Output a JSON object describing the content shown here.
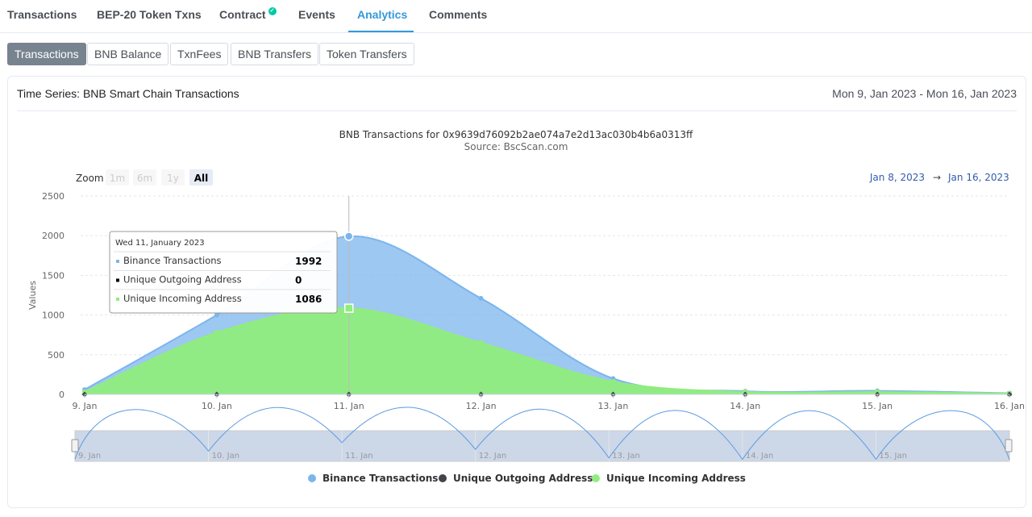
{
  "tabs": [
    {
      "label": "Transactions"
    },
    {
      "label": "BEP-20 Token Txns"
    },
    {
      "label": "Contract",
      "badge": "✓"
    },
    {
      "label": "Events"
    },
    {
      "label": "Analytics"
    },
    {
      "label": "Comments"
    }
  ],
  "subtabs": [
    {
      "label": "Transactions"
    },
    {
      "label": "BNB Balance"
    },
    {
      "label": "TxnFees"
    },
    {
      "label": "BNB Transfers"
    },
    {
      "label": "Token Transfers"
    }
  ],
  "card": {
    "title": "Time Series: BNB Smart Chain Transactions",
    "date_range": "Mon 9, Jan 2023 - Mon 16, Jan 2023"
  },
  "zoom": {
    "label": "Zoom",
    "buttons": [
      "1m",
      "6m",
      "1y",
      "All"
    ],
    "from": "Jan 8, 2023",
    "arrow": "→",
    "to": "Jan 16, 2023"
  },
  "tooltip": {
    "date": "Wed 11, January 2023",
    "rows": [
      {
        "name": "Binance Transactions",
        "value": "1992"
      },
      {
        "name": "Unique Outgoing Address",
        "value": "0"
      },
      {
        "name": "Unique Incoming Address",
        "value": "1086"
      }
    ]
  },
  "colors": {
    "accent": "#3498db",
    "series_blue": "#7cb5ec",
    "series_dark": "#434348",
    "series_green": "#90ed7d"
  },
  "chart_data": {
    "type": "area",
    "title": "BNB Transactions for 0x9639d76092b2ae074a7e2d13ac030b4b6a0313ff",
    "subtitle": "Source: BscScan.com",
    "ylabel": "Values",
    "ylim": [
      0,
      2500
    ],
    "yticks": [
      "0",
      "500",
      "1000",
      "1500",
      "2000",
      "2500"
    ],
    "categories": [
      "9. Jan",
      "10. Jan",
      "11. Jan",
      "12. Jan",
      "13. Jan",
      "14. Jan",
      "15. Jan",
      "16. Jan"
    ],
    "navigator_labels": [
      "9. Jan",
      "10. Jan",
      "11. Jan",
      "12. Jan",
      "13. Jan",
      "14. Jan",
      "15. Jan"
    ],
    "series": [
      {
        "name": "Binance Transactions",
        "values": [
          60,
          1000,
          1992,
          1210,
          200,
          40,
          45,
          15
        ]
      },
      {
        "name": "Unique Outgoing Address",
        "values": [
          0,
          0,
          0,
          0,
          0,
          0,
          0,
          0
        ]
      },
      {
        "name": "Unique Incoming Address",
        "values": [
          30,
          780,
          1086,
          650,
          160,
          30,
          30,
          10
        ]
      }
    ],
    "grid": true,
    "legend": "bottom-center"
  }
}
